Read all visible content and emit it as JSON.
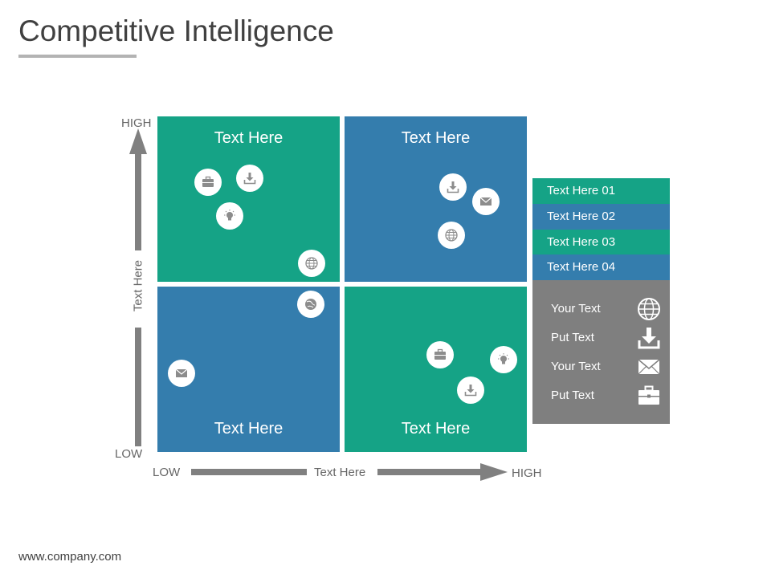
{
  "title": "Competitive Intelligence",
  "footer": "www.company.com",
  "axes": {
    "y_high": "HIGH",
    "y_low": "LOW",
    "y_label": "Text Here",
    "x_low": "LOW",
    "x_high": "HIGH",
    "x_label": "Text Here"
  },
  "quadrants": [
    {
      "label": "Text Here",
      "color": "#15a386",
      "icons": [
        "briefcase-icon",
        "download-icon",
        "lightbulb-icon",
        "globe-icon"
      ]
    },
    {
      "label": "Text Here",
      "color": "#347dad",
      "icons": [
        "download-icon",
        "envelope-icon",
        "globe-icon"
      ]
    },
    {
      "label": "Text Here",
      "color": "#347dad",
      "icons": [
        "globe-icon",
        "envelope-icon"
      ]
    },
    {
      "label": "Text Here",
      "color": "#15a386",
      "icons": [
        "briefcase-icon",
        "lightbulb-icon",
        "download-icon"
      ]
    }
  ],
  "legend": {
    "items": [
      {
        "label": "Text Here 01",
        "color": "#15a386"
      },
      {
        "label": "Text Here 02",
        "color": "#347dad"
      },
      {
        "label": "Text Here 03",
        "color": "#15a386"
      },
      {
        "label": "Text Here 04",
        "color": "#347dad"
      }
    ],
    "panel": [
      {
        "text": "Your Text",
        "icon": "globe-icon"
      },
      {
        "text": "Put Text",
        "icon": "download-icon"
      },
      {
        "text": "Your Text",
        "icon": "envelope-icon"
      },
      {
        "text": "Put Text",
        "icon": "briefcase-icon"
      }
    ]
  },
  "colors": {
    "green": "#15a386",
    "blue": "#347dad",
    "arrow": "#808080",
    "panel": "#7f7f7f"
  }
}
